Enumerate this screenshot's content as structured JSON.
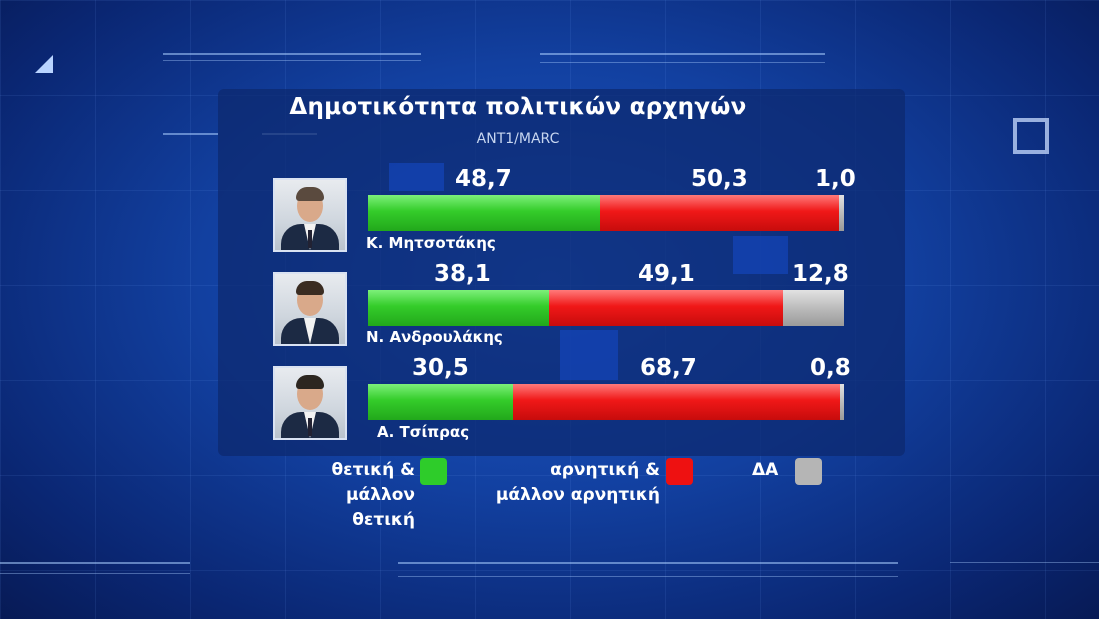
{
  "chart_data": {
    "type": "bar",
    "stacked": true,
    "orientation": "horizontal",
    "title": "Δημοτικότητα πολιτικών αρχηγών",
    "subtitle": "ANT1/MARC",
    "categories": [
      "Κ. Μητσοτάκης",
      "Ν. Ανδρουλάκης",
      "Α. Τσίπρας"
    ],
    "series": [
      {
        "name": "θετική & μάλλον θετική",
        "color": "#2ecc2a",
        "values": [
          48.7,
          38.1,
          30.5
        ],
        "labels": [
          "48,7",
          "38,1",
          "30,5"
        ]
      },
      {
        "name": "αρνητική & μάλλον αρνητική",
        "color": "#ee1111",
        "values": [
          50.3,
          49.1,
          68.7
        ],
        "labels": [
          "50,3",
          "49,1",
          "68,7"
        ]
      },
      {
        "name": "ΔΑ",
        "color": "#b5b5b5",
        "values": [
          1.0,
          12.8,
          0.8
        ],
        "labels": [
          "1,0",
          "12,8",
          "0,8"
        ]
      }
    ],
    "xlim": [
      0,
      100
    ],
    "legend_position": "bottom"
  },
  "legend": [
    {
      "line1": "θετική &",
      "line2": "μάλλον θετική",
      "color": "#2ecc2a"
    },
    {
      "line1": "αρνητική &",
      "line2": "μάλλον αρνητική",
      "color": "#ee1111"
    },
    {
      "line1": "ΔΑ",
      "line2": "",
      "color": "#b5b5b5"
    }
  ]
}
